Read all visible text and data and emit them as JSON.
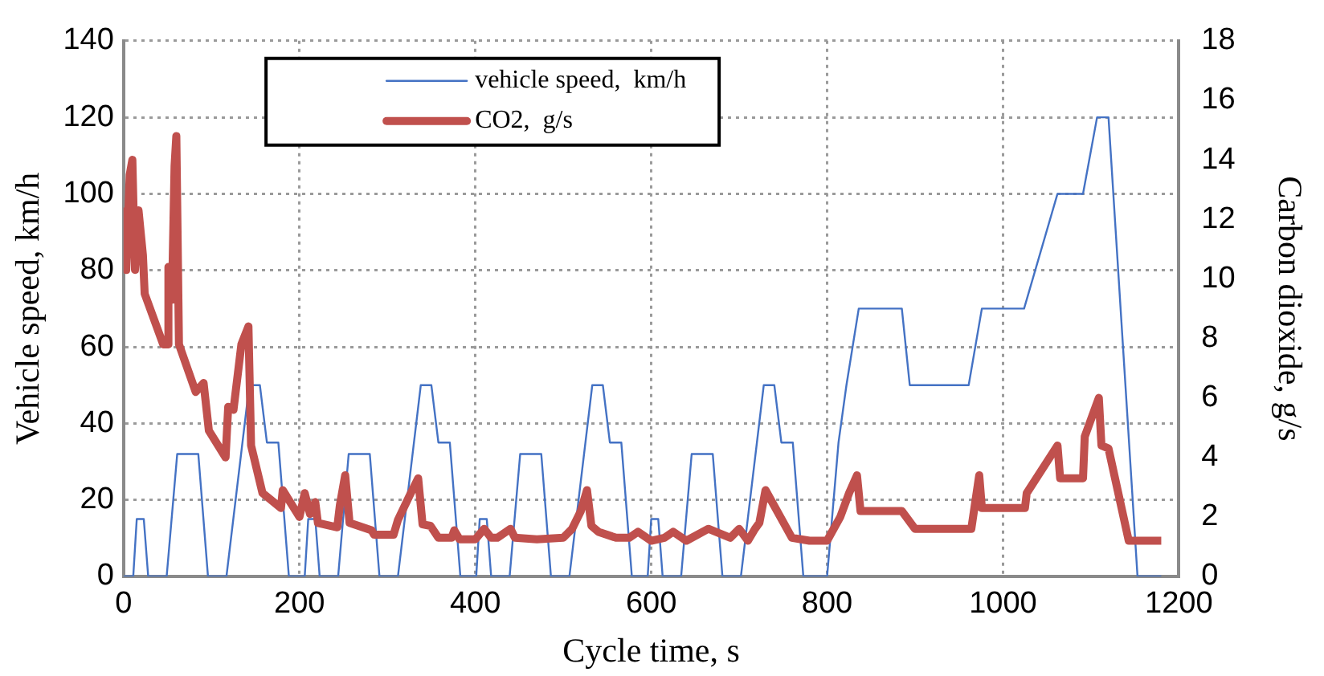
{
  "chart_data": {
    "type": "line",
    "xlabel": "Cycle time, s",
    "ylabel": "Vehicle speed, km/h",
    "y2label": "Carbon dioxide, g/s",
    "xlim": [
      0,
      1200
    ],
    "xticks": [
      0,
      200,
      400,
      600,
      800,
      1000,
      1200
    ],
    "ylim": [
      0,
      140
    ],
    "yticks": [
      0,
      20,
      40,
      60,
      80,
      100,
      120,
      140
    ],
    "y2lim": [
      0,
      18
    ],
    "y2ticks": [
      0,
      2,
      4,
      6,
      8,
      10,
      12,
      14,
      16,
      18
    ],
    "grid": true,
    "legend": "top",
    "series": [
      {
        "name": "vehicle speed,  km/h",
        "color": "#4472c4",
        "x": [
          0,
          11,
          15,
          23,
          28,
          49,
          61,
          85,
          96,
          117,
          143,
          155,
          163,
          176,
          188,
          206,
          210,
          218,
          223,
          244,
          256,
          280,
          291,
          312,
          338,
          350,
          358,
          371,
          383,
          401,
          405,
          413,
          418,
          439,
          451,
          475,
          486,
          507,
          533,
          545,
          553,
          566,
          578,
          596,
          600,
          608,
          613,
          634,
          646,
          670,
          681,
          702,
          728,
          740,
          748,
          761,
          773,
          800,
          813,
          822,
          836,
          885,
          894,
          961,
          976,
          1024,
          1062,
          1091,
          1107,
          1120,
          1153,
          1180
        ],
        "values": [
          0,
          0,
          15,
          15,
          0,
          0,
          32,
          32,
          0,
          0,
          50,
          50,
          35,
          35,
          0,
          0,
          15,
          15,
          0,
          0,
          32,
          32,
          0,
          0,
          50,
          50,
          35,
          35,
          0,
          0,
          15,
          15,
          0,
          0,
          32,
          32,
          0,
          0,
          50,
          50,
          35,
          35,
          0,
          0,
          15,
          15,
          0,
          0,
          32,
          32,
          0,
          0,
          50,
          50,
          35,
          35,
          0,
          0,
          35,
          50,
          70,
          70,
          50,
          50,
          70,
          70,
          100,
          100,
          120,
          120,
          0,
          0
        ]
      },
      {
        "name": "CO2,  g/s",
        "color": "#c0504d",
        "axis": "y2",
        "x": [
          0,
          3,
          7,
          10,
          13,
          17,
          22,
          24,
          45,
          50,
          51,
          55,
          58,
          60,
          63,
          82,
          91,
          97,
          116,
          119,
          125,
          134,
          142,
          145,
          158,
          179,
          181,
          200,
          206,
          212,
          218,
          221,
          243,
          246,
          252,
          257,
          282,
          285,
          307,
          312,
          325,
          335,
          340,
          349,
          358,
          373,
          376,
          382,
          400,
          410,
          418,
          425,
          440,
          445,
          470,
          500,
          510,
          520,
          527,
          532,
          540,
          560,
          575,
          585,
          600,
          615,
          625,
          640,
          665,
          690,
          700,
          710,
          718,
          723,
          730,
          760,
          780,
          800,
          815,
          825,
          834,
          838,
          885,
          900,
          964,
          973,
          976,
          1025,
          1027,
          1062,
          1065,
          1091,
          1093,
          1109,
          1112,
          1120,
          1143,
          1180
        ],
        "values": [
          12.4,
          10.3,
          13.5,
          14.0,
          10.3,
          12.3,
          10.8,
          9.5,
          7.8,
          7.8,
          10.4,
          9.3,
          13.8,
          14.8,
          7.8,
          6.2,
          6.5,
          4.9,
          4.0,
          5.7,
          5.6,
          7.8,
          8.4,
          4.4,
          2.8,
          2.3,
          2.9,
          2.0,
          2.8,
          2.1,
          2.5,
          1.8,
          1.65,
          2.4,
          3.4,
          1.8,
          1.55,
          1.4,
          1.4,
          1.9,
          2.7,
          3.3,
          1.75,
          1.7,
          1.3,
          1.3,
          1.55,
          1.25,
          1.25,
          1.6,
          1.3,
          1.3,
          1.6,
          1.3,
          1.25,
          1.3,
          1.6,
          2.2,
          2.9,
          1.7,
          1.5,
          1.3,
          1.3,
          1.5,
          1.2,
          1.3,
          1.5,
          1.2,
          1.6,
          1.3,
          1.6,
          1.2,
          1.6,
          1.8,
          2.9,
          1.3,
          1.2,
          1.2,
          2.0,
          2.8,
          3.4,
          2.2,
          2.2,
          1.6,
          1.6,
          3.4,
          2.3,
          2.3,
          2.8,
          4.4,
          3.3,
          3.3,
          4.7,
          6.0,
          4.4,
          4.3,
          1.2,
          1.2
        ]
      }
    ]
  }
}
